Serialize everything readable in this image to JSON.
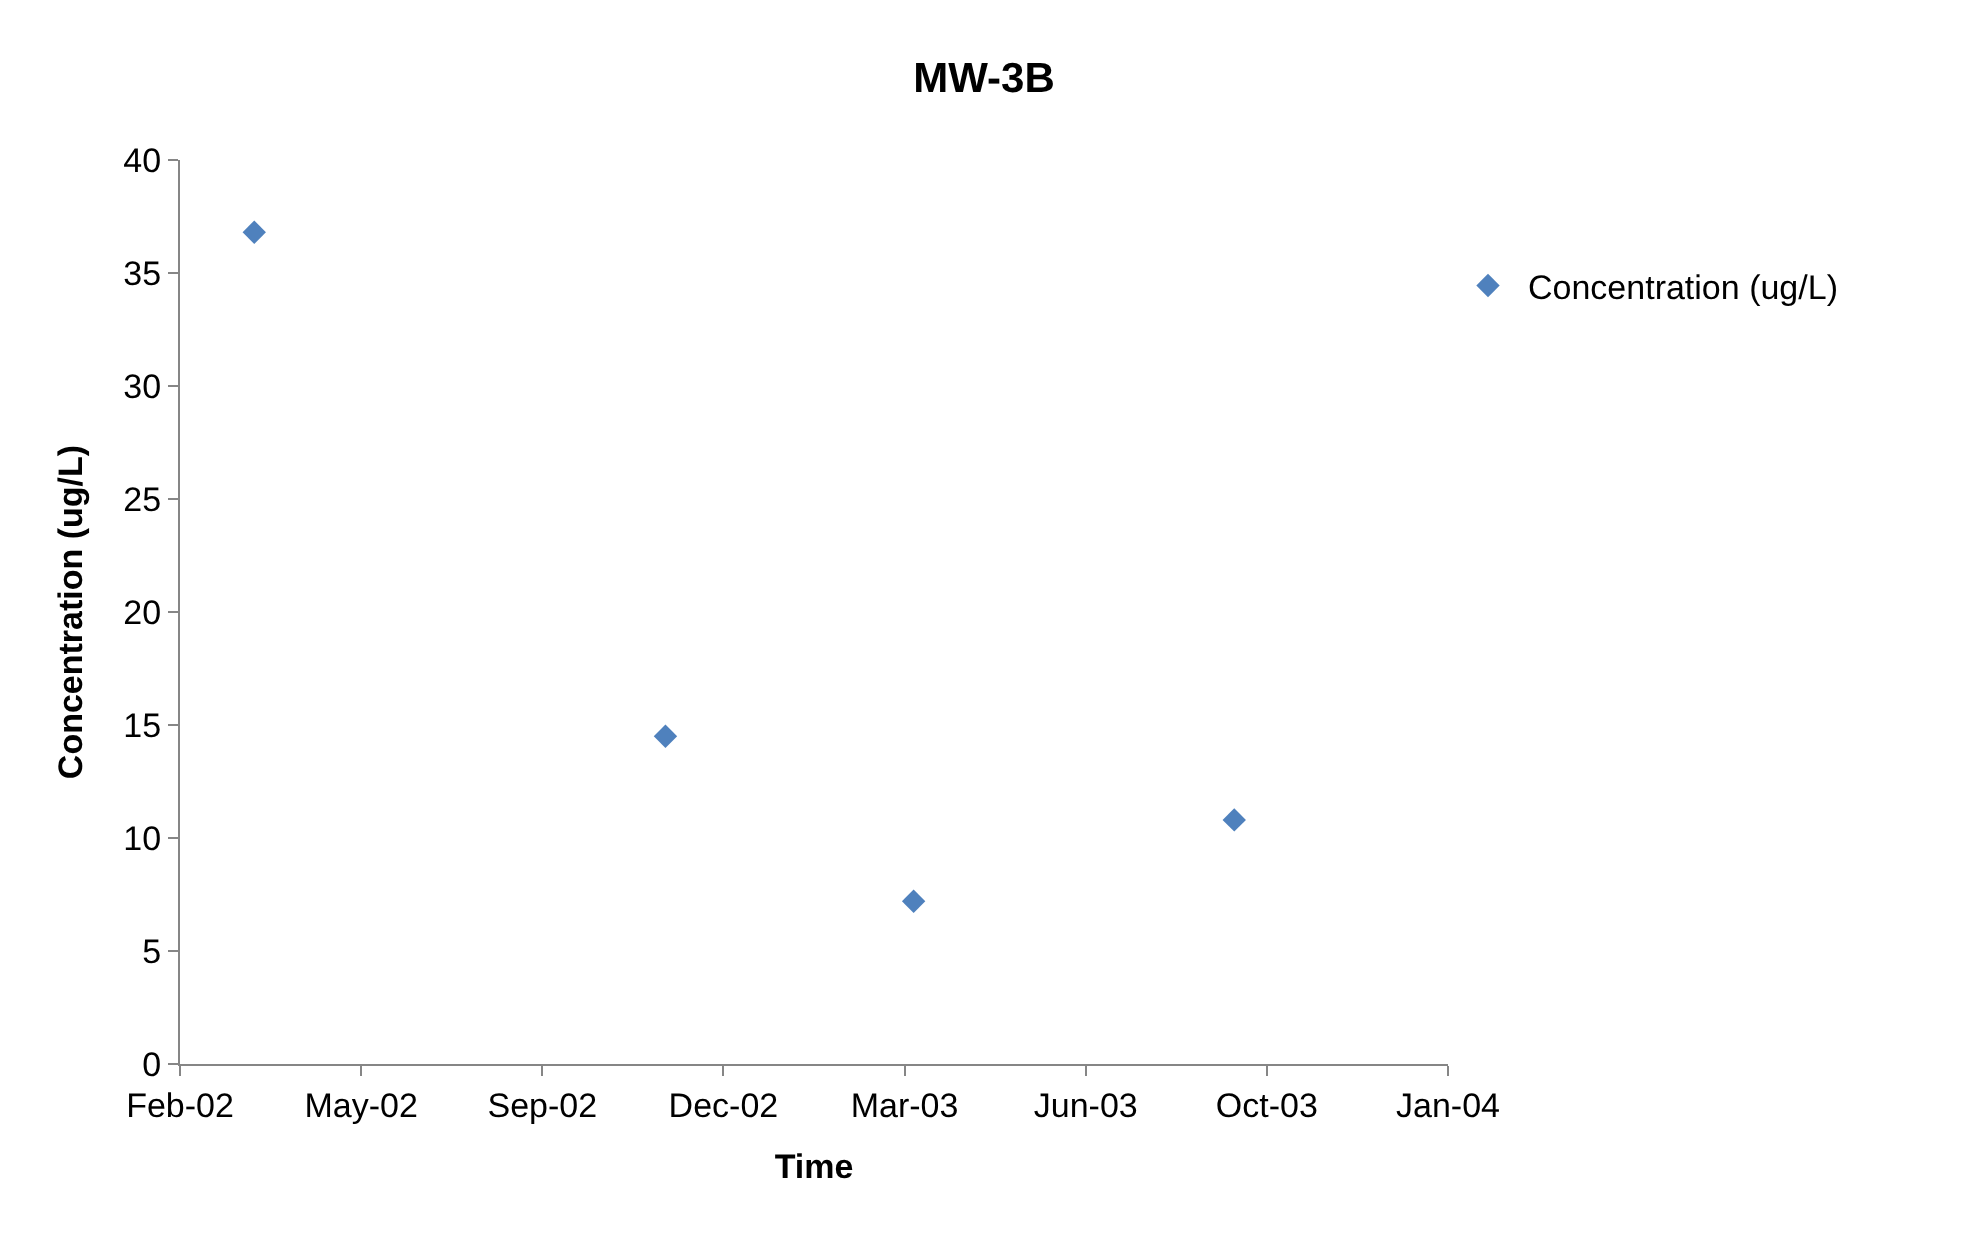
{
  "chart_data": {
    "type": "scatter",
    "title": "MW-3B",
    "xlabel": "Time",
    "ylabel": "Concentration (ug/L)",
    "x": [
      "2002-03-28",
      "2002-11-10",
      "2003-03-27",
      "2003-09-20"
    ],
    "series": [
      {
        "name": "Concentration (ug/L)",
        "color": "#4f81bd",
        "values": [
          36.8,
          14.5,
          7.2,
          10.8
        ]
      }
    ],
    "xlim": [
      "2002-02-15",
      "2004-01-16"
    ],
    "xticks": [
      {
        "value": "2002-02-15",
        "label": "Feb-02"
      },
      {
        "value": "2002-05-26",
        "label": "May-02"
      },
      {
        "value": "2002-09-03",
        "label": "Sep-02"
      },
      {
        "value": "2002-12-12",
        "label": "Dec-02"
      },
      {
        "value": "2003-03-22",
        "label": "Mar-03"
      },
      {
        "value": "2003-06-30",
        "label": "Jun-03"
      },
      {
        "value": "2003-10-08",
        "label": "Oct-03"
      },
      {
        "value": "2004-01-16",
        "label": "Jan-04"
      }
    ],
    "ylim": [
      0,
      40
    ],
    "yticks": [
      0,
      5,
      10,
      15,
      20,
      25,
      30,
      35,
      40
    ],
    "legend": "top right",
    "marker": "diamond"
  }
}
